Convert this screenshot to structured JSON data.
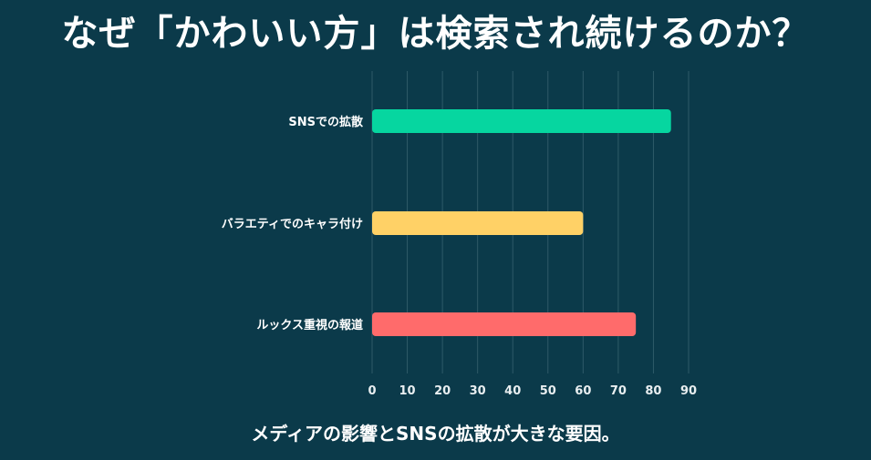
{
  "title": "なぜ「かわいい方」は検索され続けるのか？",
  "caption": "メディアの影響とSNSの拡散が大きな要因。",
  "colors": {
    "background": "#0b3a4a",
    "grid": "#2f5a68",
    "text": "#ffffff",
    "tick": "#e8eef0"
  },
  "chart_data": {
    "type": "bar",
    "orientation": "horizontal",
    "categories": [
      "SNSでの拡散",
      "バラエティでのキャラ付け",
      "ルックス重視の報道"
    ],
    "values": [
      85,
      60,
      75
    ],
    "colors": [
      "#06d6a0",
      "#ffd166",
      "#ff6b6b"
    ],
    "xlim": [
      0,
      90
    ],
    "xticks": [
      0,
      10,
      20,
      30,
      40,
      50,
      60,
      70,
      80,
      90
    ],
    "xlabel": "",
    "ylabel": "",
    "grid": true
  }
}
